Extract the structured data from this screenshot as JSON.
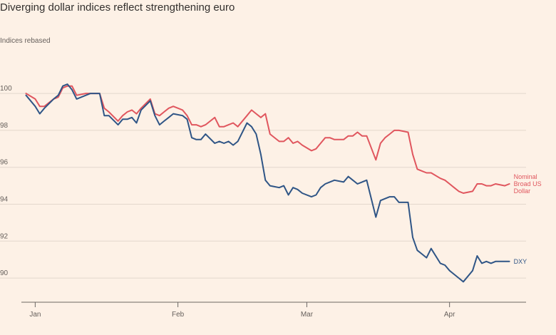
{
  "title": "Diverging dollar indices reflect strengthening euro",
  "subtitle": "Indices rebased",
  "chart_data": {
    "type": "line",
    "title": "Diverging dollar indices reflect strengthening euro",
    "ylabel": "Indices rebased",
    "xlabel": "",
    "ylim": [
      89,
      101.2
    ],
    "yticks": [
      90,
      92,
      94,
      96,
      98,
      100
    ],
    "xlim": [
      -3,
      106
    ],
    "x_month_ticks": [
      {
        "label": "Jan",
        "x": 0
      },
      {
        "label": "Feb",
        "x": 31
      },
      {
        "label": "Mar",
        "x": 59
      },
      {
        "label": "Apr",
        "x": 90
      }
    ],
    "grid": true,
    "series": [
      {
        "name": "Nominal Broad US Dollar",
        "label_lines": [
          "Nominal",
          "Broad US",
          "Dollar"
        ],
        "color": "#e0565e",
        "x": [
          -2,
          0,
          1,
          2,
          4,
          5,
          6,
          7,
          8,
          9,
          11,
          12,
          13,
          14,
          15,
          16,
          18,
          19,
          20,
          21,
          22,
          23,
          25,
          26,
          27,
          28,
          29,
          30,
          32,
          33,
          34,
          35,
          36,
          37,
          39,
          40,
          41,
          42,
          43,
          44,
          46,
          47,
          48,
          49,
          50,
          51,
          53,
          54,
          55,
          56,
          57,
          58,
          60,
          61,
          62,
          63,
          64,
          65,
          67,
          68,
          69,
          70,
          71,
          72,
          74,
          75,
          76,
          77,
          78,
          79,
          81,
          82,
          83,
          84,
          85,
          86,
          88,
          89,
          90,
          91,
          92,
          93,
          95,
          96,
          97,
          98,
          99,
          100,
          102,
          103
        ],
        "values": [
          100.0,
          99.7,
          99.3,
          99.3,
          99.7,
          99.8,
          100.3,
          100.4,
          100.4,
          99.9,
          100.0,
          100.0,
          100.0,
          100.0,
          99.2,
          99.0,
          98.5,
          98.8,
          99.0,
          99.1,
          98.9,
          99.2,
          99.7,
          98.9,
          98.8,
          99.0,
          99.2,
          99.3,
          99.1,
          98.8,
          98.3,
          98.3,
          98.2,
          98.3,
          98.7,
          98.2,
          98.2,
          98.3,
          98.4,
          98.2,
          98.8,
          99.1,
          98.9,
          98.7,
          98.9,
          97.8,
          97.4,
          97.4,
          97.6,
          97.3,
          97.4,
          97.2,
          96.9,
          97.0,
          97.3,
          97.6,
          97.6,
          97.5,
          97.5,
          97.7,
          97.7,
          97.9,
          97.7,
          97.7,
          96.4,
          97.3,
          97.6,
          97.8,
          98.0,
          98.0,
          97.9,
          96.7,
          95.9,
          95.8,
          95.7,
          95.7,
          95.4,
          95.3,
          95.1,
          94.9,
          94.7,
          94.6,
          94.7,
          95.1,
          95.1,
          95.0,
          95.0,
          95.1,
          95.0,
          95.1
        ]
      },
      {
        "name": "DXY",
        "label_lines": [
          "DXY"
        ],
        "color": "#2f5586",
        "x": [
          -2,
          0,
          1,
          2,
          4,
          5,
          6,
          7,
          8,
          9,
          11,
          12,
          13,
          14,
          15,
          16,
          18,
          19,
          20,
          21,
          22,
          23,
          25,
          26,
          27,
          28,
          29,
          30,
          32,
          33,
          34,
          35,
          36,
          37,
          39,
          40,
          41,
          42,
          43,
          44,
          46,
          47,
          48,
          49,
          50,
          51,
          53,
          54,
          55,
          56,
          57,
          58,
          60,
          61,
          62,
          63,
          64,
          65,
          67,
          68,
          69,
          70,
          71,
          72,
          74,
          75,
          76,
          77,
          78,
          79,
          81,
          82,
          83,
          84,
          85,
          86,
          88,
          89,
          90,
          91,
          92,
          93,
          95,
          96,
          97,
          98,
          99,
          100,
          102,
          103
        ],
        "values": [
          99.9,
          99.3,
          98.9,
          99.2,
          99.7,
          99.9,
          100.4,
          100.5,
          100.2,
          99.7,
          99.9,
          100.0,
          100.0,
          100.0,
          98.8,
          98.8,
          98.3,
          98.6,
          98.6,
          98.7,
          98.4,
          99.1,
          99.6,
          98.8,
          98.3,
          98.5,
          98.7,
          98.9,
          98.8,
          98.6,
          97.6,
          97.5,
          97.5,
          97.8,
          97.3,
          97.4,
          97.3,
          97.4,
          97.2,
          97.4,
          98.4,
          98.2,
          97.8,
          96.7,
          95.3,
          95.0,
          94.9,
          95.0,
          94.5,
          94.9,
          94.8,
          94.6,
          94.4,
          94.5,
          94.9,
          95.1,
          95.2,
          95.3,
          95.2,
          95.5,
          95.3,
          95.1,
          95.2,
          95.3,
          93.3,
          94.2,
          94.3,
          94.4,
          94.4,
          94.1,
          94.1,
          92.2,
          91.5,
          91.3,
          91.1,
          91.6,
          90.8,
          90.7,
          90.4,
          90.2,
          90.0,
          89.8,
          90.4,
          91.2,
          90.8,
          90.9,
          90.8,
          90.9,
          90.9,
          90.9
        ]
      }
    ]
  }
}
